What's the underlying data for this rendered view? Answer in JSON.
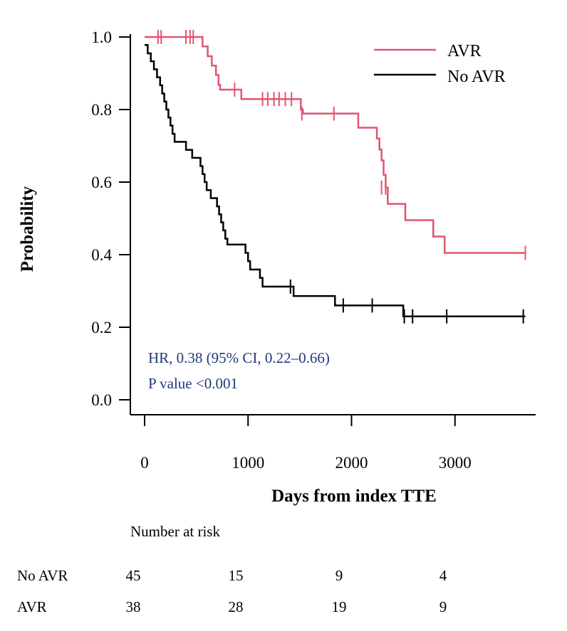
{
  "chart_data": {
    "type": "line",
    "subtype": "kaplan-meier",
    "xlabel": "Days from index TTE",
    "ylabel": "Probability",
    "xlim": [
      0,
      3800
    ],
    "ylim": [
      0,
      1
    ],
    "x_ticks": [
      0,
      1000,
      2000,
      3000
    ],
    "x_tick_labels": [
      "0",
      "1000",
      "2000",
      "3000"
    ],
    "y_ticks": [
      0,
      0.2,
      0.4,
      0.6,
      0.8,
      1.0
    ],
    "y_tick_labels": [
      "0.0",
      "0.2",
      "0.4",
      "0.6",
      "0.8",
      "1.0"
    ],
    "grid": false,
    "legend_position": "top-right",
    "series": [
      {
        "name": "AVR",
        "color": "#e05570",
        "steps": [
          [
            0,
            1.0
          ],
          [
            540,
            1.0
          ],
          [
            560,
            0.974
          ],
          [
            610,
            0.947
          ],
          [
            650,
            0.921
          ],
          [
            690,
            0.895
          ],
          [
            715,
            0.868
          ],
          [
            730,
            0.855
          ],
          [
            920,
            0.855
          ],
          [
            935,
            0.829
          ],
          [
            1480,
            0.829
          ],
          [
            1510,
            0.8
          ],
          [
            1530,
            0.789
          ],
          [
            2040,
            0.789
          ],
          [
            2065,
            0.75
          ],
          [
            2230,
            0.75
          ],
          [
            2245,
            0.72
          ],
          [
            2270,
            0.69
          ],
          [
            2290,
            0.66
          ],
          [
            2310,
            0.62
          ],
          [
            2330,
            0.585
          ],
          [
            2350,
            0.54
          ],
          [
            2510,
            0.54
          ],
          [
            2520,
            0.495
          ],
          [
            2780,
            0.495
          ],
          [
            2790,
            0.45
          ],
          [
            2890,
            0.45
          ],
          [
            2900,
            0.405
          ],
          [
            3680,
            0.405
          ]
        ],
        "censored": [
          [
            130,
            1.0
          ],
          [
            160,
            1.0
          ],
          [
            400,
            1.0
          ],
          [
            440,
            1.0
          ],
          [
            470,
            1.0
          ],
          [
            870,
            0.855
          ],
          [
            1140,
            0.829
          ],
          [
            1190,
            0.829
          ],
          [
            1250,
            0.829
          ],
          [
            1300,
            0.829
          ],
          [
            1360,
            0.829
          ],
          [
            1420,
            0.829
          ],
          [
            1520,
            0.789
          ],
          [
            1830,
            0.789
          ],
          [
            2290,
            0.585
          ],
          [
            2330,
            0.585
          ],
          [
            3680,
            0.405
          ]
        ]
      },
      {
        "name": "No AVR",
        "color": "#000000",
        "steps": [
          [
            0,
            0.978
          ],
          [
            20,
            0.978
          ],
          [
            30,
            0.955
          ],
          [
            60,
            0.933
          ],
          [
            90,
            0.911
          ],
          [
            120,
            0.889
          ],
          [
            150,
            0.867
          ],
          [
            170,
            0.844
          ],
          [
            190,
            0.822
          ],
          [
            210,
            0.8
          ],
          [
            230,
            0.778
          ],
          [
            250,
            0.756
          ],
          [
            270,
            0.733
          ],
          [
            290,
            0.711
          ],
          [
            380,
            0.711
          ],
          [
            400,
            0.689
          ],
          [
            440,
            0.689
          ],
          [
            460,
            0.667
          ],
          [
            520,
            0.667
          ],
          [
            540,
            0.644
          ],
          [
            560,
            0.622
          ],
          [
            580,
            0.6
          ],
          [
            600,
            0.578
          ],
          [
            640,
            0.556
          ],
          [
            700,
            0.533
          ],
          [
            720,
            0.511
          ],
          [
            740,
            0.489
          ],
          [
            760,
            0.467
          ],
          [
            780,
            0.444
          ],
          [
            800,
            0.428
          ],
          [
            960,
            0.428
          ],
          [
            975,
            0.405
          ],
          [
            1000,
            0.382
          ],
          [
            1020,
            0.359
          ],
          [
            1100,
            0.359
          ],
          [
            1115,
            0.336
          ],
          [
            1140,
            0.312
          ],
          [
            1400,
            0.312
          ],
          [
            1440,
            0.286
          ],
          [
            1820,
            0.286
          ],
          [
            1840,
            0.26
          ],
          [
            2480,
            0.26
          ],
          [
            2500,
            0.23
          ],
          [
            3680,
            0.23
          ]
        ],
        "censored": [
          [
            1410,
            0.312
          ],
          [
            1920,
            0.26
          ],
          [
            2200,
            0.26
          ],
          [
            2510,
            0.23
          ],
          [
            2590,
            0.23
          ],
          [
            2920,
            0.23
          ],
          [
            3660,
            0.23
          ]
        ]
      }
    ],
    "annotations": [
      "HR, 0.38 (95% CI, 0.22–0.66)",
      "P value <0.001"
    ]
  },
  "risk_table": {
    "title": "Number at risk",
    "rows": [
      {
        "label": "No AVR",
        "values": [
          "45",
          "15",
          "9",
          "4"
        ]
      },
      {
        "label": "AVR",
        "values": [
          "38",
          "28",
          "19",
          "9"
        ]
      }
    ]
  }
}
